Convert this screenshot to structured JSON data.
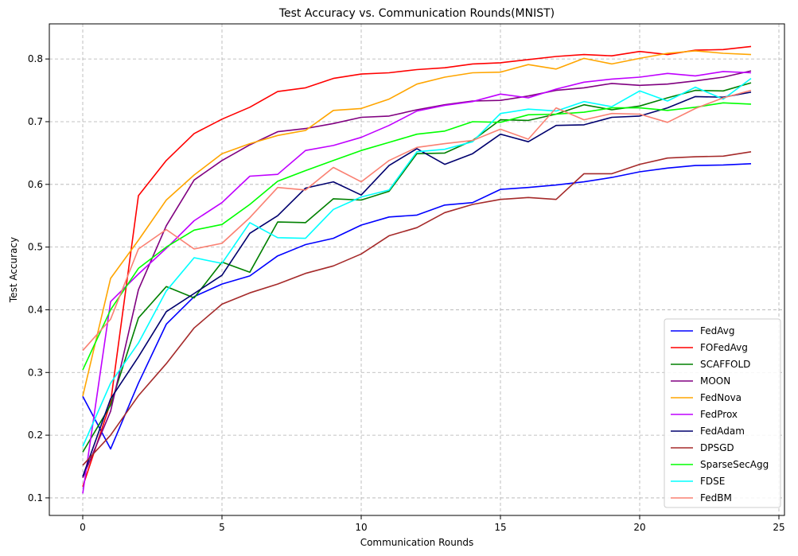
{
  "chart_data": {
    "type": "line",
    "title": "Test Accuracy vs. Communication Rounds(MNIST)",
    "xlabel": "Communication Rounds",
    "ylabel": "Test Accuracy",
    "xlim": [
      -1.2,
      25.2
    ],
    "ylim": [
      0.072,
      0.856
    ],
    "xticks": [
      0,
      5,
      10,
      15,
      20,
      25
    ],
    "yticks": [
      0.1,
      0.2,
      0.3,
      0.4,
      0.5,
      0.6,
      0.7,
      0.8
    ],
    "grid": true,
    "legend_position": "lower-right",
    "x": [
      0,
      1,
      2,
      3,
      4,
      5,
      6,
      7,
      8,
      9,
      10,
      11,
      12,
      13,
      14,
      15,
      16,
      17,
      18,
      19,
      20,
      21,
      22,
      23,
      24
    ],
    "series": [
      {
        "name": "FedAvg",
        "color": "#0000ff",
        "values": [
          0.262,
          0.178,
          0.283,
          0.377,
          0.421,
          0.441,
          0.454,
          0.486,
          0.504,
          0.514,
          0.535,
          0.548,
          0.551,
          0.567,
          0.571,
          0.592,
          0.595,
          0.599,
          0.604,
          0.611,
          0.62,
          0.626,
          0.63,
          0.631,
          0.633
        ]
      },
      {
        "name": "FOFedAvg",
        "color": "#ff0000",
        "values": [
          0.118,
          0.252,
          0.582,
          0.638,
          0.681,
          0.704,
          0.723,
          0.748,
          0.754,
          0.769,
          0.776,
          0.778,
          0.783,
          0.786,
          0.792,
          0.794,
          0.799,
          0.804,
          0.807,
          0.805,
          0.812,
          0.807,
          0.814,
          0.815,
          0.82
        ]
      },
      {
        "name": "SCAFFOLD",
        "color": "#008000",
        "values": [
          0.173,
          0.248,
          0.387,
          0.437,
          0.419,
          0.476,
          0.46,
          0.54,
          0.539,
          0.577,
          0.575,
          0.589,
          0.649,
          0.65,
          0.67,
          0.703,
          0.702,
          0.712,
          0.727,
          0.719,
          0.725,
          0.738,
          0.75,
          0.749,
          0.762
        ]
      },
      {
        "name": "MOON",
        "color": "#800080",
        "values": [
          0.132,
          0.238,
          0.432,
          0.534,
          0.607,
          0.638,
          0.663,
          0.684,
          0.689,
          0.697,
          0.707,
          0.709,
          0.719,
          0.727,
          0.733,
          0.734,
          0.741,
          0.75,
          0.754,
          0.761,
          0.758,
          0.76,
          0.765,
          0.771,
          0.781
        ]
      },
      {
        "name": "FedNova",
        "color": "#ffa500",
        "values": [
          0.262,
          0.45,
          0.511,
          0.575,
          0.615,
          0.649,
          0.665,
          0.678,
          0.686,
          0.718,
          0.721,
          0.736,
          0.76,
          0.771,
          0.778,
          0.779,
          0.791,
          0.784,
          0.801,
          0.792,
          0.801,
          0.809,
          0.813,
          0.809,
          0.807
        ]
      },
      {
        "name": "FedProx",
        "color": "#bf00ff",
        "values": [
          0.107,
          0.413,
          0.457,
          0.498,
          0.542,
          0.571,
          0.613,
          0.616,
          0.654,
          0.662,
          0.675,
          0.694,
          0.717,
          0.726,
          0.732,
          0.744,
          0.738,
          0.752,
          0.763,
          0.768,
          0.771,
          0.777,
          0.773,
          0.78,
          0.778
        ]
      },
      {
        "name": "FedAdam",
        "color": "#00006e",
        "values": [
          0.134,
          0.258,
          0.325,
          0.397,
          0.426,
          0.455,
          0.522,
          0.55,
          0.594,
          0.604,
          0.583,
          0.63,
          0.657,
          0.632,
          0.649,
          0.68,
          0.668,
          0.694,
          0.695,
          0.707,
          0.709,
          0.722,
          0.74,
          0.739,
          0.747
        ]
      },
      {
        "name": "DPSGD",
        "color": "#a52a2a",
        "values": [
          0.152,
          0.2,
          0.263,
          0.314,
          0.371,
          0.409,
          0.427,
          0.441,
          0.458,
          0.47,
          0.489,
          0.518,
          0.531,
          0.555,
          0.568,
          0.576,
          0.579,
          0.576,
          0.617,
          0.617,
          0.632,
          0.642,
          0.644,
          0.645,
          0.652
        ]
      },
      {
        "name": "SparseSecAgg",
        "color": "#00ff00",
        "values": [
          0.304,
          0.4,
          0.466,
          0.5,
          0.527,
          0.536,
          0.568,
          0.605,
          0.622,
          0.638,
          0.654,
          0.667,
          0.68,
          0.685,
          0.7,
          0.699,
          0.711,
          0.712,
          0.715,
          0.722,
          0.722,
          0.718,
          0.723,
          0.73,
          0.728
        ]
      },
      {
        "name": "FDSE",
        "color": "#00ffff",
        "values": [
          0.182,
          0.283,
          0.347,
          0.43,
          0.483,
          0.474,
          0.539,
          0.515,
          0.514,
          0.56,
          0.58,
          0.591,
          0.652,
          0.656,
          0.668,
          0.713,
          0.72,
          0.717,
          0.732,
          0.724,
          0.749,
          0.733,
          0.755,
          0.736,
          0.769
        ]
      },
      {
        "name": "FedBM",
        "color": "#fa8072",
        "values": [
          0.335,
          0.385,
          0.497,
          0.528,
          0.497,
          0.506,
          0.547,
          0.595,
          0.591,
          0.627,
          0.604,
          0.638,
          0.659,
          0.665,
          0.67,
          0.688,
          0.672,
          0.722,
          0.703,
          0.713,
          0.712,
          0.699,
          0.721,
          0.738,
          0.75
        ]
      }
    ]
  }
}
